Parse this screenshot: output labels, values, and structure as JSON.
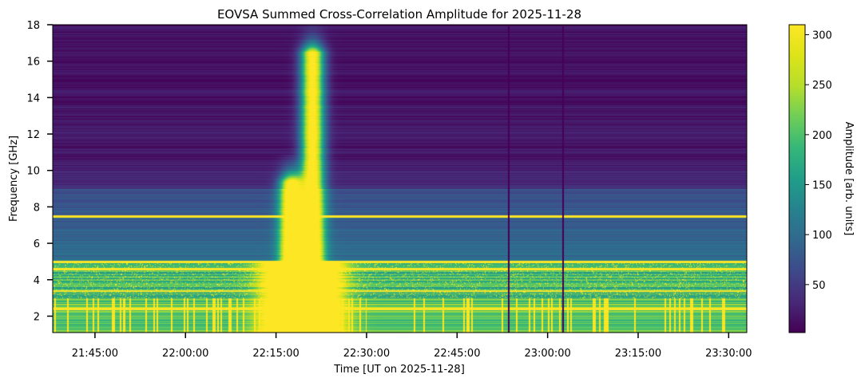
{
  "chart_data": {
    "type": "heatmap",
    "title": "EOVSA Summed Cross-Correlation Amplitude for 2025-11-28",
    "xlabel": "Time [UT on 2025-11-28]",
    "ylabel": "Frequency [GHz]",
    "colorbar_label": "Amplitude [arb. units]",
    "colormap": "viridis",
    "x_range": [
      "21:38:00",
      "23:33:00"
    ],
    "x_ticks": [
      "21:45:00",
      "22:00:00",
      "22:15:00",
      "22:30:00",
      "22:45:00",
      "23:00:00",
      "23:15:00",
      "23:30:00"
    ],
    "y_range": [
      1.1,
      18
    ],
    "y_ticks": [
      2,
      4,
      6,
      8,
      10,
      12,
      14,
      16,
      18
    ],
    "colorbar_range": [
      2,
      310
    ],
    "colorbar_ticks": [
      50,
      100,
      150,
      200,
      250,
      300
    ],
    "burst_peaks": [
      {
        "time": "22:17:30",
        "freq_max_ghz": 9.4,
        "amplitude": 310
      },
      {
        "time": "22:21:00",
        "freq_max_ghz": 16.5,
        "amplitude": 310
      }
    ],
    "rfi_lines_ghz": [
      7.5,
      5.0,
      4.6,
      3.4,
      2.4
    ],
    "dropout_times": [
      "22:53:30",
      "23:02:30"
    ],
    "background_amplitude": {
      "above_9ghz": 15,
      "from_5_to_9ghz": 70,
      "from_3_to_5ghz": 180,
      "below_3ghz": 210
    }
  },
  "colors": {
    "viridis_low": "#440154",
    "viridis_mid": "#21918c",
    "viridis_high": "#fde725"
  }
}
